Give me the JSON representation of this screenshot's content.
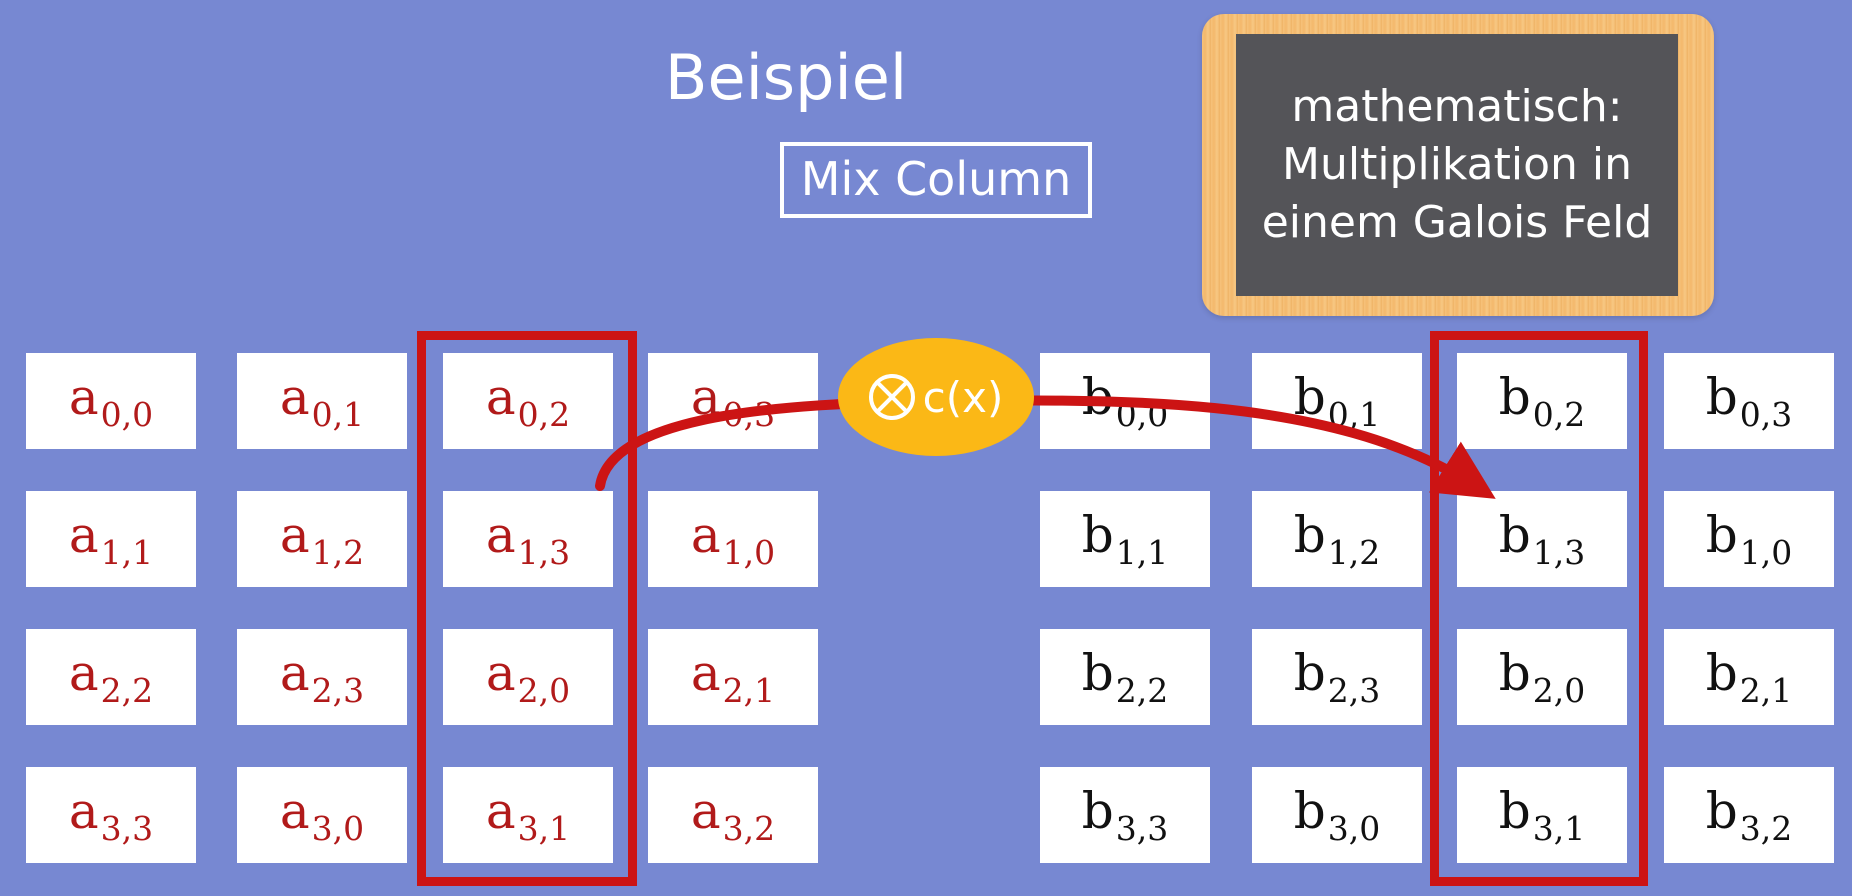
{
  "title": "Beispiel",
  "step_label": "Mix Column",
  "note": "mathematisch:\nMultiplikation in\neinem Galois Feld",
  "operation": {
    "icon": "circled-times-icon",
    "label": "c(x)"
  },
  "colors": {
    "background": "#7788d2",
    "a_text": "#b11a1a",
    "b_text": "#111111",
    "highlight": "#cc1414",
    "operator": "#fbb816",
    "board": "#545458",
    "board_frame": "#f6c27a"
  },
  "matrix_a": [
    [
      {
        "base": "a",
        "sub": "0,0"
      },
      {
        "base": "a",
        "sub": "0,1"
      },
      {
        "base": "a",
        "sub": "0,2"
      },
      {
        "base": "a",
        "sub": "0,3"
      }
    ],
    [
      {
        "base": "a",
        "sub": "1,1"
      },
      {
        "base": "a",
        "sub": "1,2"
      },
      {
        "base": "a",
        "sub": "1,3"
      },
      {
        "base": "a",
        "sub": "1,0"
      }
    ],
    [
      {
        "base": "a",
        "sub": "2,2"
      },
      {
        "base": "a",
        "sub": "2,3"
      },
      {
        "base": "a",
        "sub": "2,0"
      },
      {
        "base": "a",
        "sub": "2,1"
      }
    ],
    [
      {
        "base": "a",
        "sub": "3,3"
      },
      {
        "base": "a",
        "sub": "3,0"
      },
      {
        "base": "a",
        "sub": "3,1"
      },
      {
        "base": "a",
        "sub": "3,2"
      }
    ]
  ],
  "matrix_b": [
    [
      {
        "base": "b",
        "sub": "0,0"
      },
      {
        "base": "b",
        "sub": "0,1"
      },
      {
        "base": "b",
        "sub": "0,2"
      },
      {
        "base": "b",
        "sub": "0,3"
      }
    ],
    [
      {
        "base": "b",
        "sub": "1,1"
      },
      {
        "base": "b",
        "sub": "1,2"
      },
      {
        "base": "b",
        "sub": "1,3"
      },
      {
        "base": "b",
        "sub": "1,0"
      }
    ],
    [
      {
        "base": "b",
        "sub": "2,2"
      },
      {
        "base": "b",
        "sub": "2,3"
      },
      {
        "base": "b",
        "sub": "2,0"
      },
      {
        "base": "b",
        "sub": "2,1"
      }
    ],
    [
      {
        "base": "b",
        "sub": "3,3"
      },
      {
        "base": "b",
        "sub": "3,0"
      },
      {
        "base": "b",
        "sub": "3,1"
      },
      {
        "base": "b",
        "sub": "3,2"
      }
    ]
  ],
  "highlighted_column_a": 2,
  "highlighted_column_b": 2
}
